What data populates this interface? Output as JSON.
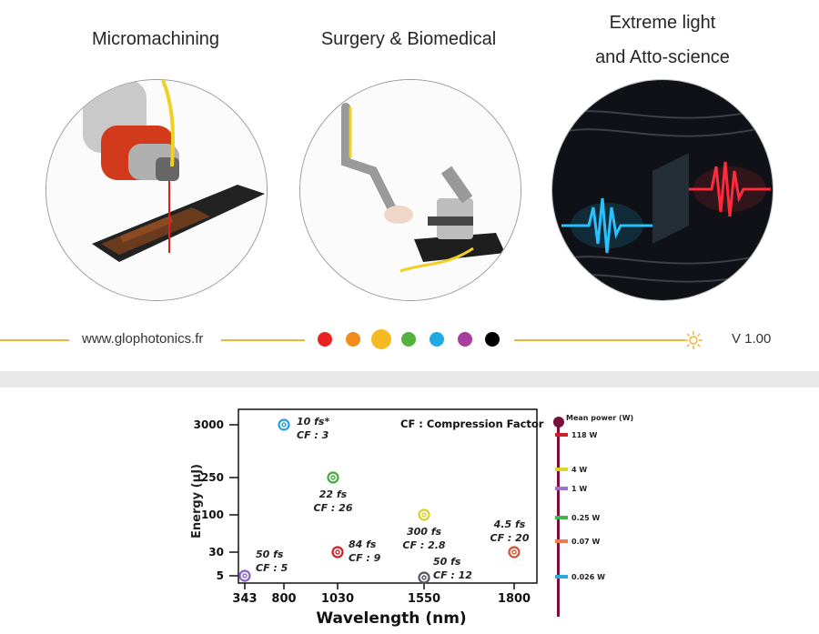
{
  "top_slide": {
    "applications": [
      {
        "title": "Micromachining"
      },
      {
        "title": "Surgery & Biomedical"
      },
      {
        "title_line1": "Extreme light",
        "title_line2": "and Atto-science"
      }
    ],
    "footer": {
      "website": "www.glophotonics.fr",
      "version": "V 1.00",
      "dots": [
        "#e8221f",
        "#f28a1c",
        "#f5b921",
        "#53b23e",
        "#21a9e6",
        "#a63ea0",
        "#000000"
      ],
      "line_color": "#f2b43a"
    }
  },
  "chart_data": {
    "type": "scatter",
    "xlabel": "Wavelength (nm)",
    "ylabel": "Energy (µJ)",
    "annotation": "CF : Compression Factor",
    "x_ticks": [
      "343",
      "800",
      "1030",
      "1550",
      "1800"
    ],
    "y_ticks": [
      "3000",
      "250",
      "100",
      "30",
      "5"
    ],
    "points": [
      {
        "x": 343,
        "y": 5,
        "label1": "50 fs",
        "label2": "CF : 5",
        "color": "#8a63c9"
      },
      {
        "x": 800,
        "y": 3000,
        "label1": "10 fs*",
        "label2": "CF : 3",
        "color": "#2a9ed8"
      },
      {
        "x": 1030,
        "y": 250,
        "label1": "22 fs",
        "label2": "CF : 26",
        "color": "#3fae3a"
      },
      {
        "x": 1030,
        "y": 30,
        "label1": "84 fs",
        "label2": "CF : 9",
        "color": "#d11f2a"
      },
      {
        "x": 1550,
        "y": 100,
        "label1": "300 fs",
        "label2": "CF : 2.8",
        "color": "#d6d22a"
      },
      {
        "x": 1550,
        "y": 5,
        "label1": "50 fs",
        "label2": "CF : 12",
        "color": "#555566"
      },
      {
        "x": 1800,
        "y": 30,
        "label1": "4.5 fs",
        "label2": "CF : 20",
        "color": "#d2542f"
      }
    ],
    "power_scale": {
      "title": "Mean power (W)",
      "items": [
        {
          "label": "118 W",
          "color": "#d11f2a"
        },
        {
          "label": "4 W",
          "color": "#d8d82a"
        },
        {
          "label": "1 W",
          "color": "#9b70d0"
        },
        {
          "label": "0.25 W",
          "color": "#3fb64a"
        },
        {
          "label": "0.07 W",
          "color": "#f07a48"
        },
        {
          "label": "0.026 W",
          "color": "#2aa8e0"
        }
      ],
      "bar_color": "#7a0f3d"
    }
  }
}
